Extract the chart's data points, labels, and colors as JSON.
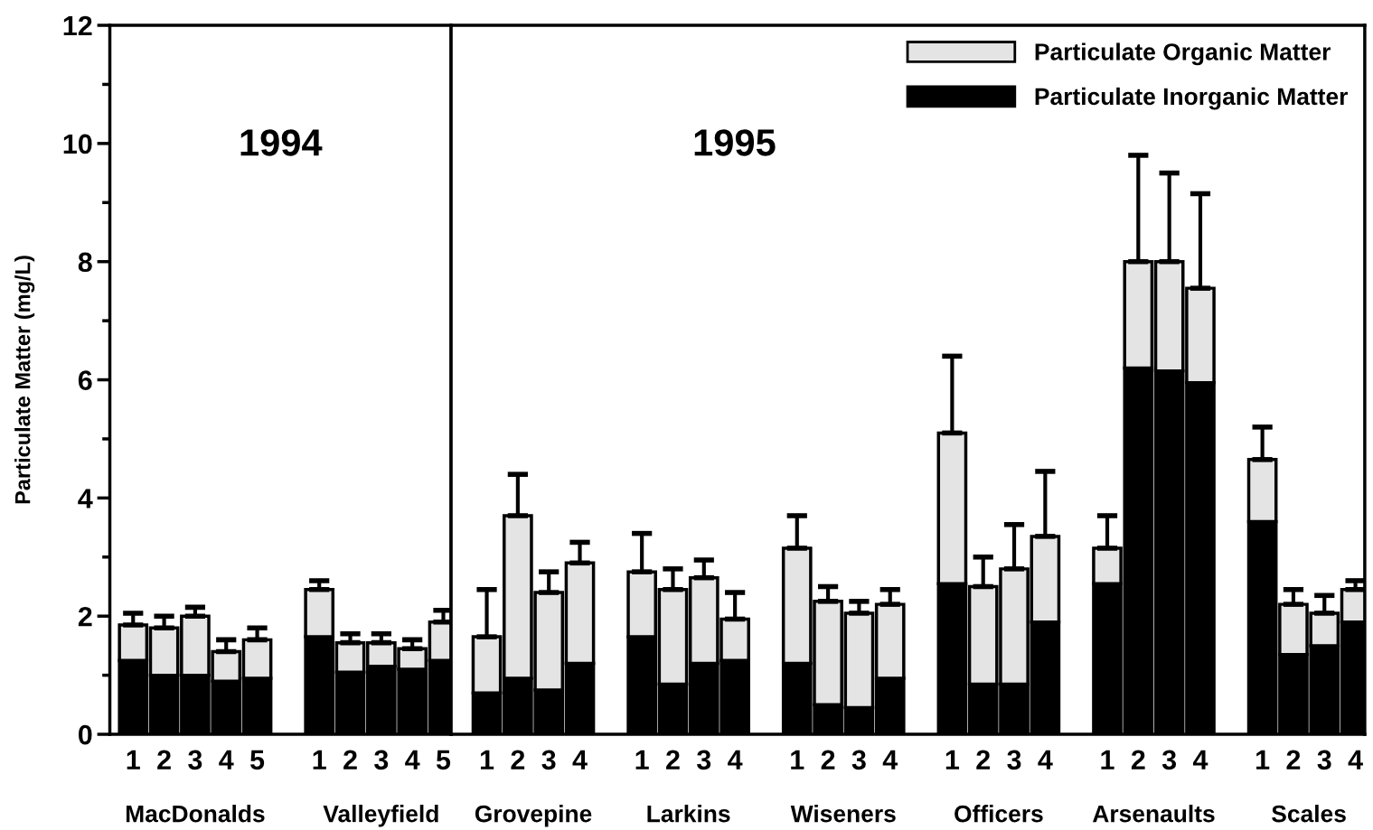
{
  "chart_data": [
    {
      "type": "bar",
      "stacked": true,
      "title": "1994",
      "ylabel": "Particulate Matter (mg/L)",
      "categories": [
        "1",
        "2",
        "3",
        "4",
        "5",
        null,
        "1",
        "2",
        "3",
        "4",
        "5"
      ],
      "series": [
        {
          "color": "#000000",
          "values": [
            1.25,
            1.0,
            1.0,
            0.9,
            0.95,
            null,
            1.65,
            1.05,
            1.15,
            1.1,
            1.25
          ]
        },
        {
          "color": "#e4e4e4",
          "values": [
            0.6,
            0.8,
            1.0,
            0.5,
            0.65,
            null,
            0.8,
            0.5,
            0.4,
            0.35,
            0.65
          ],
          "errors": [
            [
              1.85,
              2.05
            ],
            [
              1.8,
              2.0
            ],
            [
              2.0,
              2.15
            ],
            [
              1.4,
              1.6
            ],
            [
              1.6,
              1.8
            ],
            null,
            [
              2.45,
              2.6
            ],
            [
              1.55,
              1.7
            ],
            [
              1.55,
              1.7
            ],
            [
              1.45,
              1.6
            ],
            [
              1.9,
              2.1
            ]
          ]
        }
      ],
      "annotations": [
        "MacDonalds",
        "Valleyfield"
      ],
      "ylim": [
        0,
        12
      ],
      "yticks": [
        0,
        {
          "value": 1,
          "label": null
        },
        2,
        {
          "value": 3,
          "label": null
        },
        4,
        {
          "value": 5,
          "label": null
        },
        6,
        {
          "value": 7,
          "label": null
        },
        8,
        {
          "value": 9,
          "label": null
        },
        10,
        {
          "value": 11,
          "label": null
        },
        12
      ],
      "grid": false,
      "legend": false
    },
    {
      "type": "bar",
      "stacked": true,
      "title": "1995",
      "categories": [
        "1",
        "2",
        "3",
        "4",
        null,
        "1",
        "2",
        "3",
        "4",
        null,
        "1",
        "2",
        "3",
        "4",
        null,
        "1",
        "2",
        "3",
        "4",
        null,
        "1",
        "2",
        "3",
        "4",
        null,
        "1",
        "2",
        "3",
        "4"
      ],
      "series": [
        {
          "name": "Particulate Inorganic Matter",
          "color": "#000000",
          "values": [
            0.7,
            0.95,
            0.75,
            1.2,
            null,
            1.65,
            0.85,
            1.2,
            1.25,
            null,
            1.2,
            0.5,
            0.45,
            0.95,
            null,
            2.55,
            0.85,
            0.85,
            1.9,
            null,
            2.55,
            6.2,
            6.15,
            5.95,
            null,
            3.6,
            1.35,
            1.5,
            1.9
          ]
        },
        {
          "name": "Particulate Organic Matter",
          "color": "#e4e4e4",
          "values": [
            0.95,
            2.75,
            1.65,
            1.7,
            null,
            1.1,
            1.6,
            1.45,
            0.7,
            null,
            1.95,
            1.75,
            1.6,
            1.25,
            null,
            2.55,
            1.65,
            1.95,
            1.45,
            null,
            0.6,
            1.8,
            1.85,
            1.6,
            null,
            1.05,
            0.85,
            0.55,
            0.55
          ],
          "errors": [
            [
              1.65,
              2.45
            ],
            [
              3.7,
              4.4
            ],
            [
              2.4,
              2.75
            ],
            [
              2.9,
              3.25
            ],
            null,
            [
              2.75,
              3.4
            ],
            [
              2.45,
              2.8
            ],
            [
              2.65,
              2.95
            ],
            [
              1.95,
              2.4
            ],
            null,
            [
              3.15,
              3.7
            ],
            [
              2.25,
              2.5
            ],
            [
              2.05,
              2.25
            ],
            [
              2.2,
              2.45
            ],
            null,
            [
              5.1,
              6.4
            ],
            [
              2.5,
              3.0
            ],
            [
              2.8,
              3.55
            ],
            [
              3.35,
              4.45
            ],
            null,
            [
              3.15,
              3.7
            ],
            [
              8.0,
              9.8
            ],
            [
              8.0,
              9.5
            ],
            [
              7.55,
              9.15
            ],
            null,
            [
              4.65,
              5.2
            ],
            [
              2.2,
              2.45
            ],
            [
              2.05,
              2.35
            ],
            [
              2.45,
              2.6
            ]
          ]
        }
      ],
      "annotations": [
        "Grovepine",
        "Larkins",
        "Wiseners",
        "Officers",
        "Arsenaults",
        "Scales"
      ],
      "ylim": [
        0,
        12
      ],
      "tick_labels": "x",
      "grid": false,
      "legend": "top right"
    }
  ]
}
